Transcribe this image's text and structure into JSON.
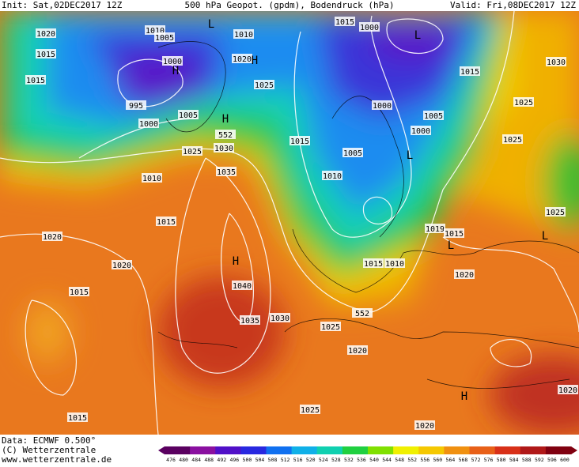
{
  "header": {
    "init": "Init: Sat,02DEC2017 12Z",
    "title": "500 hPa Geopot. (gpdm), Bodendruck (hPa)",
    "valid": "Valid: Fri,08DEC2017 12Z"
  },
  "map": {
    "labels": [
      "1020",
      "1015",
      "1010",
      "1005",
      "1010",
      "1020",
      "H",
      "1025",
      "1000",
      "H",
      "995",
      "1000",
      "1005",
      "H",
      "552",
      "1025",
      "1030",
      "1035",
      "1015",
      "1010",
      "1015",
      "1020",
      "1020",
      "1015",
      "1015",
      "H",
      "1040",
      "1035",
      "1030",
      "1025",
      "552",
      "1020",
      "1025",
      "1020",
      "H",
      "1015",
      "1000",
      "L",
      "1015",
      "1030",
      "1025",
      "1025",
      "1000",
      "1005",
      "1000",
      "1015",
      "1005",
      "1010",
      "L",
      "1015",
      "1010",
      "1019",
      "1015",
      "L",
      "1020",
      "L",
      "1025",
      "1020",
      "L"
    ]
  },
  "footer": {
    "data": "Data: ECMWF  0.500°",
    "copyright": "(C) Wetterzentrale",
    "url": "www.wetterzentrale.de"
  },
  "colorbar": {
    "ticks": [
      476,
      480,
      484,
      488,
      492,
      496,
      500,
      504,
      508,
      512,
      516,
      520,
      524,
      528,
      532,
      536,
      540,
      544,
      548,
      552,
      556,
      560,
      564,
      568,
      572,
      576,
      580,
      584,
      588,
      592,
      596,
      600
    ]
  }
}
